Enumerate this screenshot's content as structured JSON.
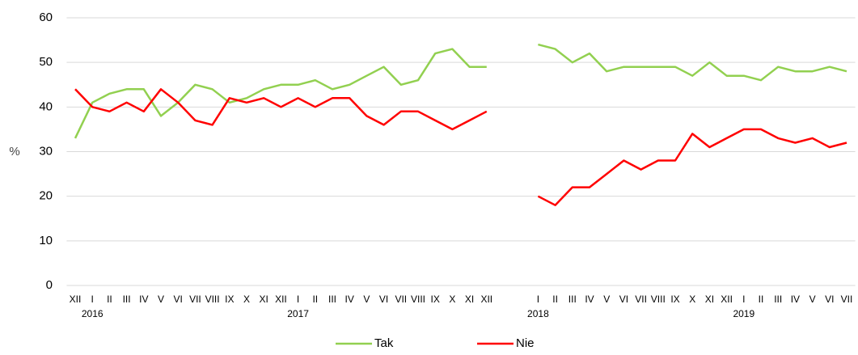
{
  "chart_data": {
    "type": "line",
    "y_label": "%",
    "categories": [
      "XII",
      "I",
      "II",
      "III",
      "IV",
      "V",
      "VI",
      "VII",
      "VIII",
      "IX",
      "X",
      "XI",
      "XII",
      "I",
      "II",
      "III",
      "IV",
      "V",
      "VI",
      "VII",
      "VIII",
      "IX",
      "X",
      "XI",
      "XII",
      null,
      null,
      "I",
      "II",
      "III",
      "IV",
      "V",
      "VI",
      "VII",
      "VIII",
      "IX",
      "X",
      "XI",
      "XII",
      "I",
      "II",
      "III",
      "IV",
      "V",
      "VI",
      "VII"
    ],
    "years": [
      null,
      "2016",
      null,
      null,
      null,
      null,
      null,
      null,
      null,
      null,
      null,
      null,
      null,
      "2017",
      null,
      null,
      null,
      null,
      null,
      null,
      null,
      null,
      null,
      null,
      null,
      null,
      null,
      "2018",
      null,
      null,
      null,
      null,
      null,
      null,
      null,
      null,
      null,
      null,
      null,
      "2019",
      null,
      null,
      null,
      null,
      null,
      null
    ],
    "series": [
      {
        "name": "Tak",
        "color": "#92d050",
        "values": [
          33,
          41,
          43,
          44,
          44,
          38,
          41,
          45,
          44,
          41,
          42,
          44,
          45,
          45,
          46,
          44,
          45,
          47,
          49,
          45,
          46,
          52,
          53,
          49,
          49,
          null,
          null,
          54,
          53,
          50,
          52,
          48,
          49,
          49,
          49,
          49,
          47,
          50,
          47,
          47,
          46,
          49,
          48,
          48,
          49,
          48
        ]
      },
      {
        "name": "Nie",
        "color": "#ff0000",
        "values": [
          44,
          40,
          39,
          41,
          39,
          44,
          41,
          37,
          36,
          42,
          41,
          42,
          40,
          42,
          40,
          42,
          42,
          38,
          36,
          39,
          39,
          37,
          35,
          37,
          39,
          null,
          null,
          20,
          18,
          22,
          22,
          25,
          28,
          26,
          28,
          28,
          34,
          31,
          33,
          35,
          35,
          33,
          32,
          33,
          31,
          32
        ]
      }
    ],
    "ylim": [
      0,
      60
    ],
    "yticks": [
      0,
      10,
      20,
      30,
      40,
      50,
      60
    ],
    "grid": true,
    "legend": "bottom"
  }
}
